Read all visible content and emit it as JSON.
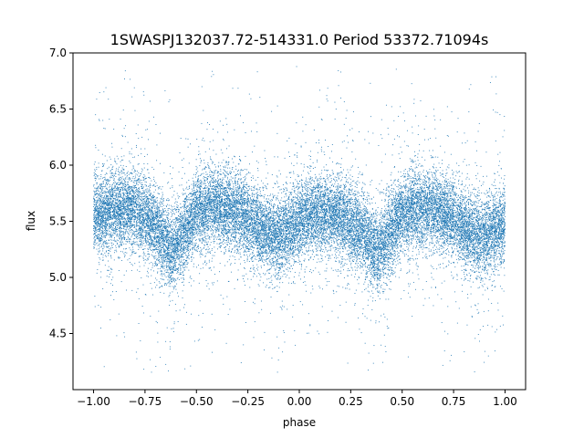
{
  "chart_data": {
    "type": "scatter",
    "title": "1SWASPJ132037.72-514331.0 Period 53372.71094s",
    "xlabel": "phase",
    "ylabel": "flux",
    "xlim": [
      -1.1,
      1.1
    ],
    "ylim": [
      4.0,
      7.0
    ],
    "x_ticks": [
      -1.0,
      -0.75,
      -0.5,
      -0.25,
      0.0,
      0.25,
      0.5,
      0.75,
      1.0
    ],
    "x_tick_labels": [
      "−1.00",
      "−0.75",
      "−0.50",
      "−0.25",
      "0.00",
      "0.25",
      "0.50",
      "0.75",
      "1.00"
    ],
    "y_ticks": [
      4.5,
      5.0,
      5.5,
      6.0,
      6.5,
      7.0
    ],
    "y_tick_labels": [
      "4.5",
      "5.0",
      "5.5",
      "6.0",
      "6.5",
      "7.0"
    ],
    "grid": false,
    "legend": "none",
    "point_color": "#1f77b4",
    "series": [
      {
        "x": [
          -1.0,
          -0.9,
          -0.8,
          -0.7,
          -0.62,
          -0.5,
          -0.4,
          -0.3,
          -0.2,
          -0.1,
          0.0,
          0.1,
          0.2,
          0.3,
          0.38,
          0.5,
          0.6,
          0.7,
          0.8,
          0.9,
          1.0
        ],
        "y": [
          5.55,
          5.6,
          5.62,
          5.45,
          5.22,
          5.58,
          5.62,
          5.58,
          5.45,
          5.35,
          5.5,
          5.58,
          5.55,
          5.4,
          5.22,
          5.58,
          5.62,
          5.58,
          5.45,
          5.35,
          5.5
        ],
        "scatter_sd": 0.17,
        "n_points": 24000
      }
    ]
  }
}
